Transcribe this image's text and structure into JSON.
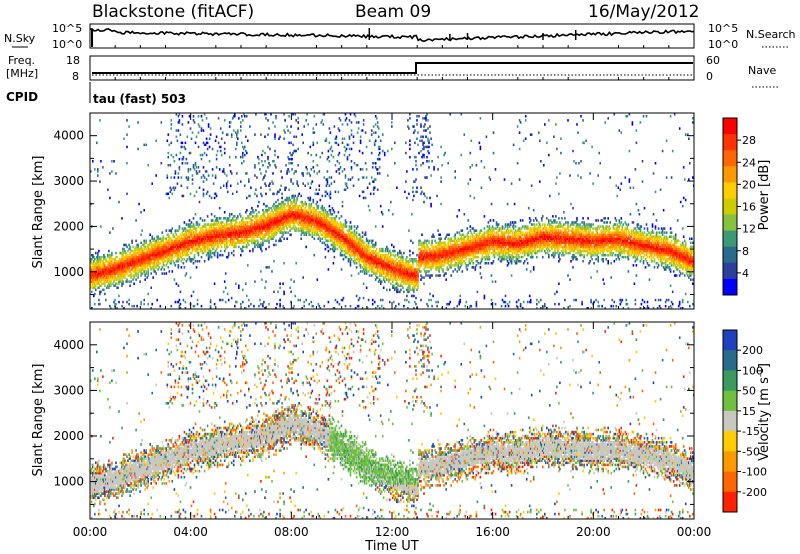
{
  "header": {
    "station": "Blackstone (fitACF)",
    "beam": "Beam 09",
    "date": "16/May/2012"
  },
  "noise_panel": {
    "left_label": "N.Sky",
    "right_label": "N.Search",
    "left_ticks": [
      "10^5",
      "10^0"
    ],
    "right_ticks": [
      "10^5",
      "10^0"
    ]
  },
  "freq_panel": {
    "label_top": "Freq.",
    "label_units": "[MHz]",
    "left_ticks": [
      "18",
      "8"
    ],
    "right_label": "Nave",
    "right_ticks": [
      "60",
      "0"
    ],
    "cpid_label": "CPID",
    "cpid_value": "tau (fast) 503"
  },
  "chart_data": [
    {
      "type": "heatmap",
      "name": "power",
      "title": "",
      "xlabel": "",
      "ylabel": "Slant Range [km]",
      "xlim": [
        0,
        24
      ],
      "ylim": [
        180,
        4500
      ],
      "y_ticks": [
        "1000",
        "2000",
        "3000",
        "4000"
      ],
      "colorbar": {
        "label": "Power [dB]",
        "ticks": [
          "28",
          "24",
          "20",
          "16",
          "12",
          "8",
          "4"
        ],
        "colors": [
          "#ff0000",
          "#ff3300",
          "#ff6600",
          "#ff9900",
          "#ffcc00",
          "#cccc00",
          "#88c040",
          "#3a9a78",
          "#2a6a8a",
          "#2c3fa0",
          "#0000ff"
        ]
      },
      "traces": [
        {
          "x": [
            0,
            1,
            2,
            3,
            4,
            5,
            6,
            7,
            8,
            9,
            10,
            11,
            12,
            12.9
          ],
          "y": [
            900,
            1050,
            1250,
            1450,
            1650,
            1780,
            1850,
            2000,
            2250,
            2100,
            1750,
            1300,
            1050,
            900
          ]
        },
        {
          "x": [
            13.05,
            14,
            15,
            16,
            17,
            18,
            19,
            20,
            21,
            22,
            23,
            24
          ],
          "y": [
            1300,
            1350,
            1500,
            1650,
            1600,
            1750,
            1700,
            1650,
            1700,
            1550,
            1450,
            1200
          ]
        }
      ]
    },
    {
      "type": "heatmap",
      "name": "velocity",
      "title": "",
      "xlabel": "Time UT",
      "ylabel": "Slant Range [km]",
      "xlim": [
        0,
        24
      ],
      "ylim": [
        180,
        4500
      ],
      "x_ticks": [
        "00:00",
        "04:00",
        "08:00",
        "12:00",
        "16:00",
        "20:00",
        "00:00"
      ],
      "y_ticks": [
        "1000",
        "2000",
        "3000",
        "4000"
      ],
      "colorbar": {
        "label": "Velocity [m s^-1]",
        "ticks": [
          "200",
          "100",
          "50",
          "15",
          "-15",
          "-50",
          "-100",
          "-200"
        ],
        "colors": [
          "#2040c0",
          "#2a6a8a",
          "#3a9a60",
          "#70c040",
          "#c8c8c0",
          "#ffcc00",
          "#ff9900",
          "#ff6600",
          "#ff2200"
        ]
      }
    }
  ]
}
